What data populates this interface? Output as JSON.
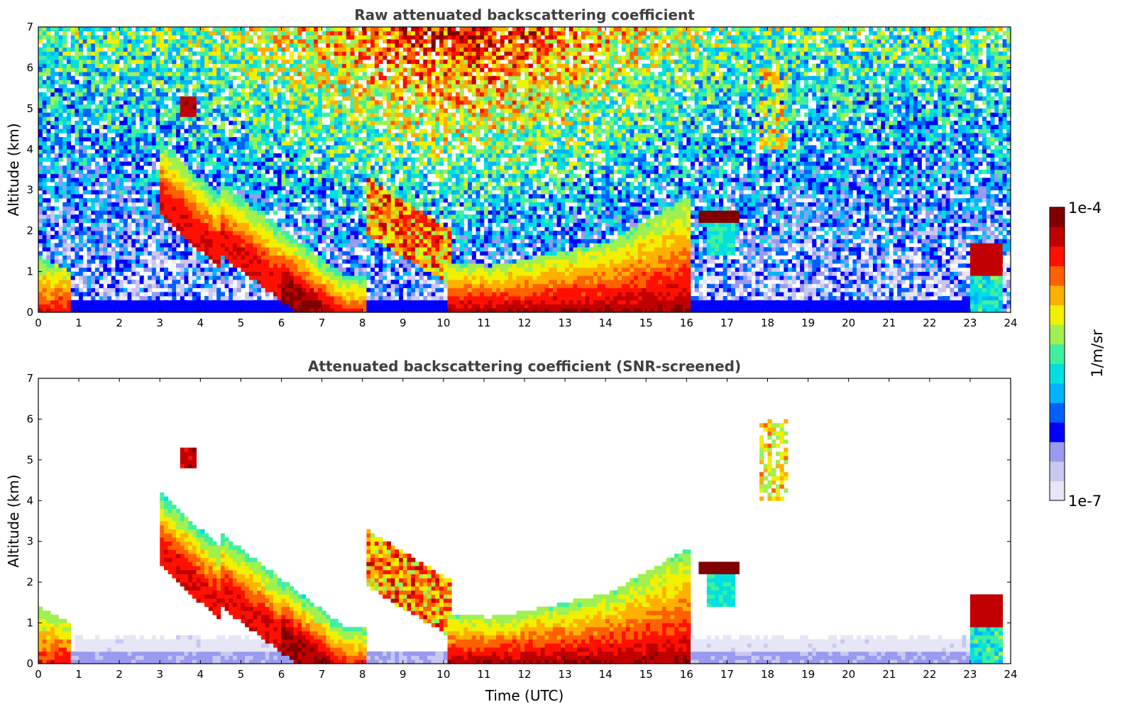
{
  "chart_data": [
    {
      "type": "heatmap",
      "title": "Raw attenuated backscattering coefficient",
      "xlabel": "",
      "ylabel": "Altitude (km)",
      "xlim": [
        0,
        24
      ],
      "ylim": [
        0,
        7
      ],
      "x_ticks": [
        "0",
        "1",
        "2",
        "3",
        "4",
        "5",
        "6",
        "7",
        "8",
        "9",
        "10",
        "11",
        "12",
        "13",
        "14",
        "15",
        "16",
        "17",
        "18",
        "19",
        "20",
        "21",
        "22",
        "23",
        "24"
      ],
      "y_ticks": [
        "0",
        "1",
        "2",
        "3",
        "4",
        "5",
        "6",
        "7"
      ],
      "features": [
        {
          "kind": "surface_layer",
          "x": [
            0,
            23.8
          ],
          "y": [
            0,
            0.3
          ],
          "level": 0.12
        },
        {
          "kind": "boundary_layer",
          "x": [
            0,
            0.8
          ],
          "y": [
            0,
            1.4
          ],
          "level": 0.55
        },
        {
          "kind": "cloud",
          "x": [
            3.4,
            4.0
          ],
          "y": [
            4.8,
            5.3
          ],
          "level": 0.85
        },
        {
          "kind": "aerosol_plume",
          "x": [
            3.0,
            16.1
          ],
          "y": [
            0,
            4.2
          ],
          "level": 0.6
        },
        {
          "kind": "cloud",
          "x": [
            16.3,
            17.3
          ],
          "y": [
            2.2,
            2.5
          ],
          "level": 0.98
        },
        {
          "kind": "cloud",
          "x": [
            17.8,
            18.5
          ],
          "y": [
            4.0,
            6.1
          ],
          "level": 0.6
        },
        {
          "kind": "cloud",
          "x": [
            23.0,
            23.8
          ],
          "y": [
            0.9,
            1.7
          ],
          "level": 0.95
        }
      ],
      "grid": false
    },
    {
      "type": "heatmap",
      "title": "Attenuated backscattering coefficient (SNR-screened)",
      "xlabel": "Time (UTC)",
      "ylabel": "Altitude (km)",
      "xlim": [
        0,
        24
      ],
      "ylim": [
        0,
        7
      ],
      "x_ticks": [
        "0",
        "1",
        "2",
        "3",
        "4",
        "5",
        "6",
        "7",
        "8",
        "9",
        "10",
        "11",
        "12",
        "13",
        "14",
        "15",
        "16",
        "17",
        "18",
        "19",
        "20",
        "21",
        "22",
        "23",
        "24"
      ],
      "y_ticks": [
        "0",
        "1",
        "2",
        "3",
        "4",
        "5",
        "6",
        "7"
      ],
      "grid": false
    }
  ],
  "colorbar": {
    "label": "1/m/sr",
    "max_label": "1e-4",
    "min_label": "1e-7",
    "colormap": [
      "#e6e6f7",
      "#c8c8f0",
      "#9a9af0",
      "#0000ff",
      "#0060ff",
      "#00b4ff",
      "#00e0e0",
      "#40f0a0",
      "#a0f050",
      "#f0f000",
      "#ffb000",
      "#ff6000",
      "#ff1000",
      "#c00000",
      "#800000"
    ]
  }
}
